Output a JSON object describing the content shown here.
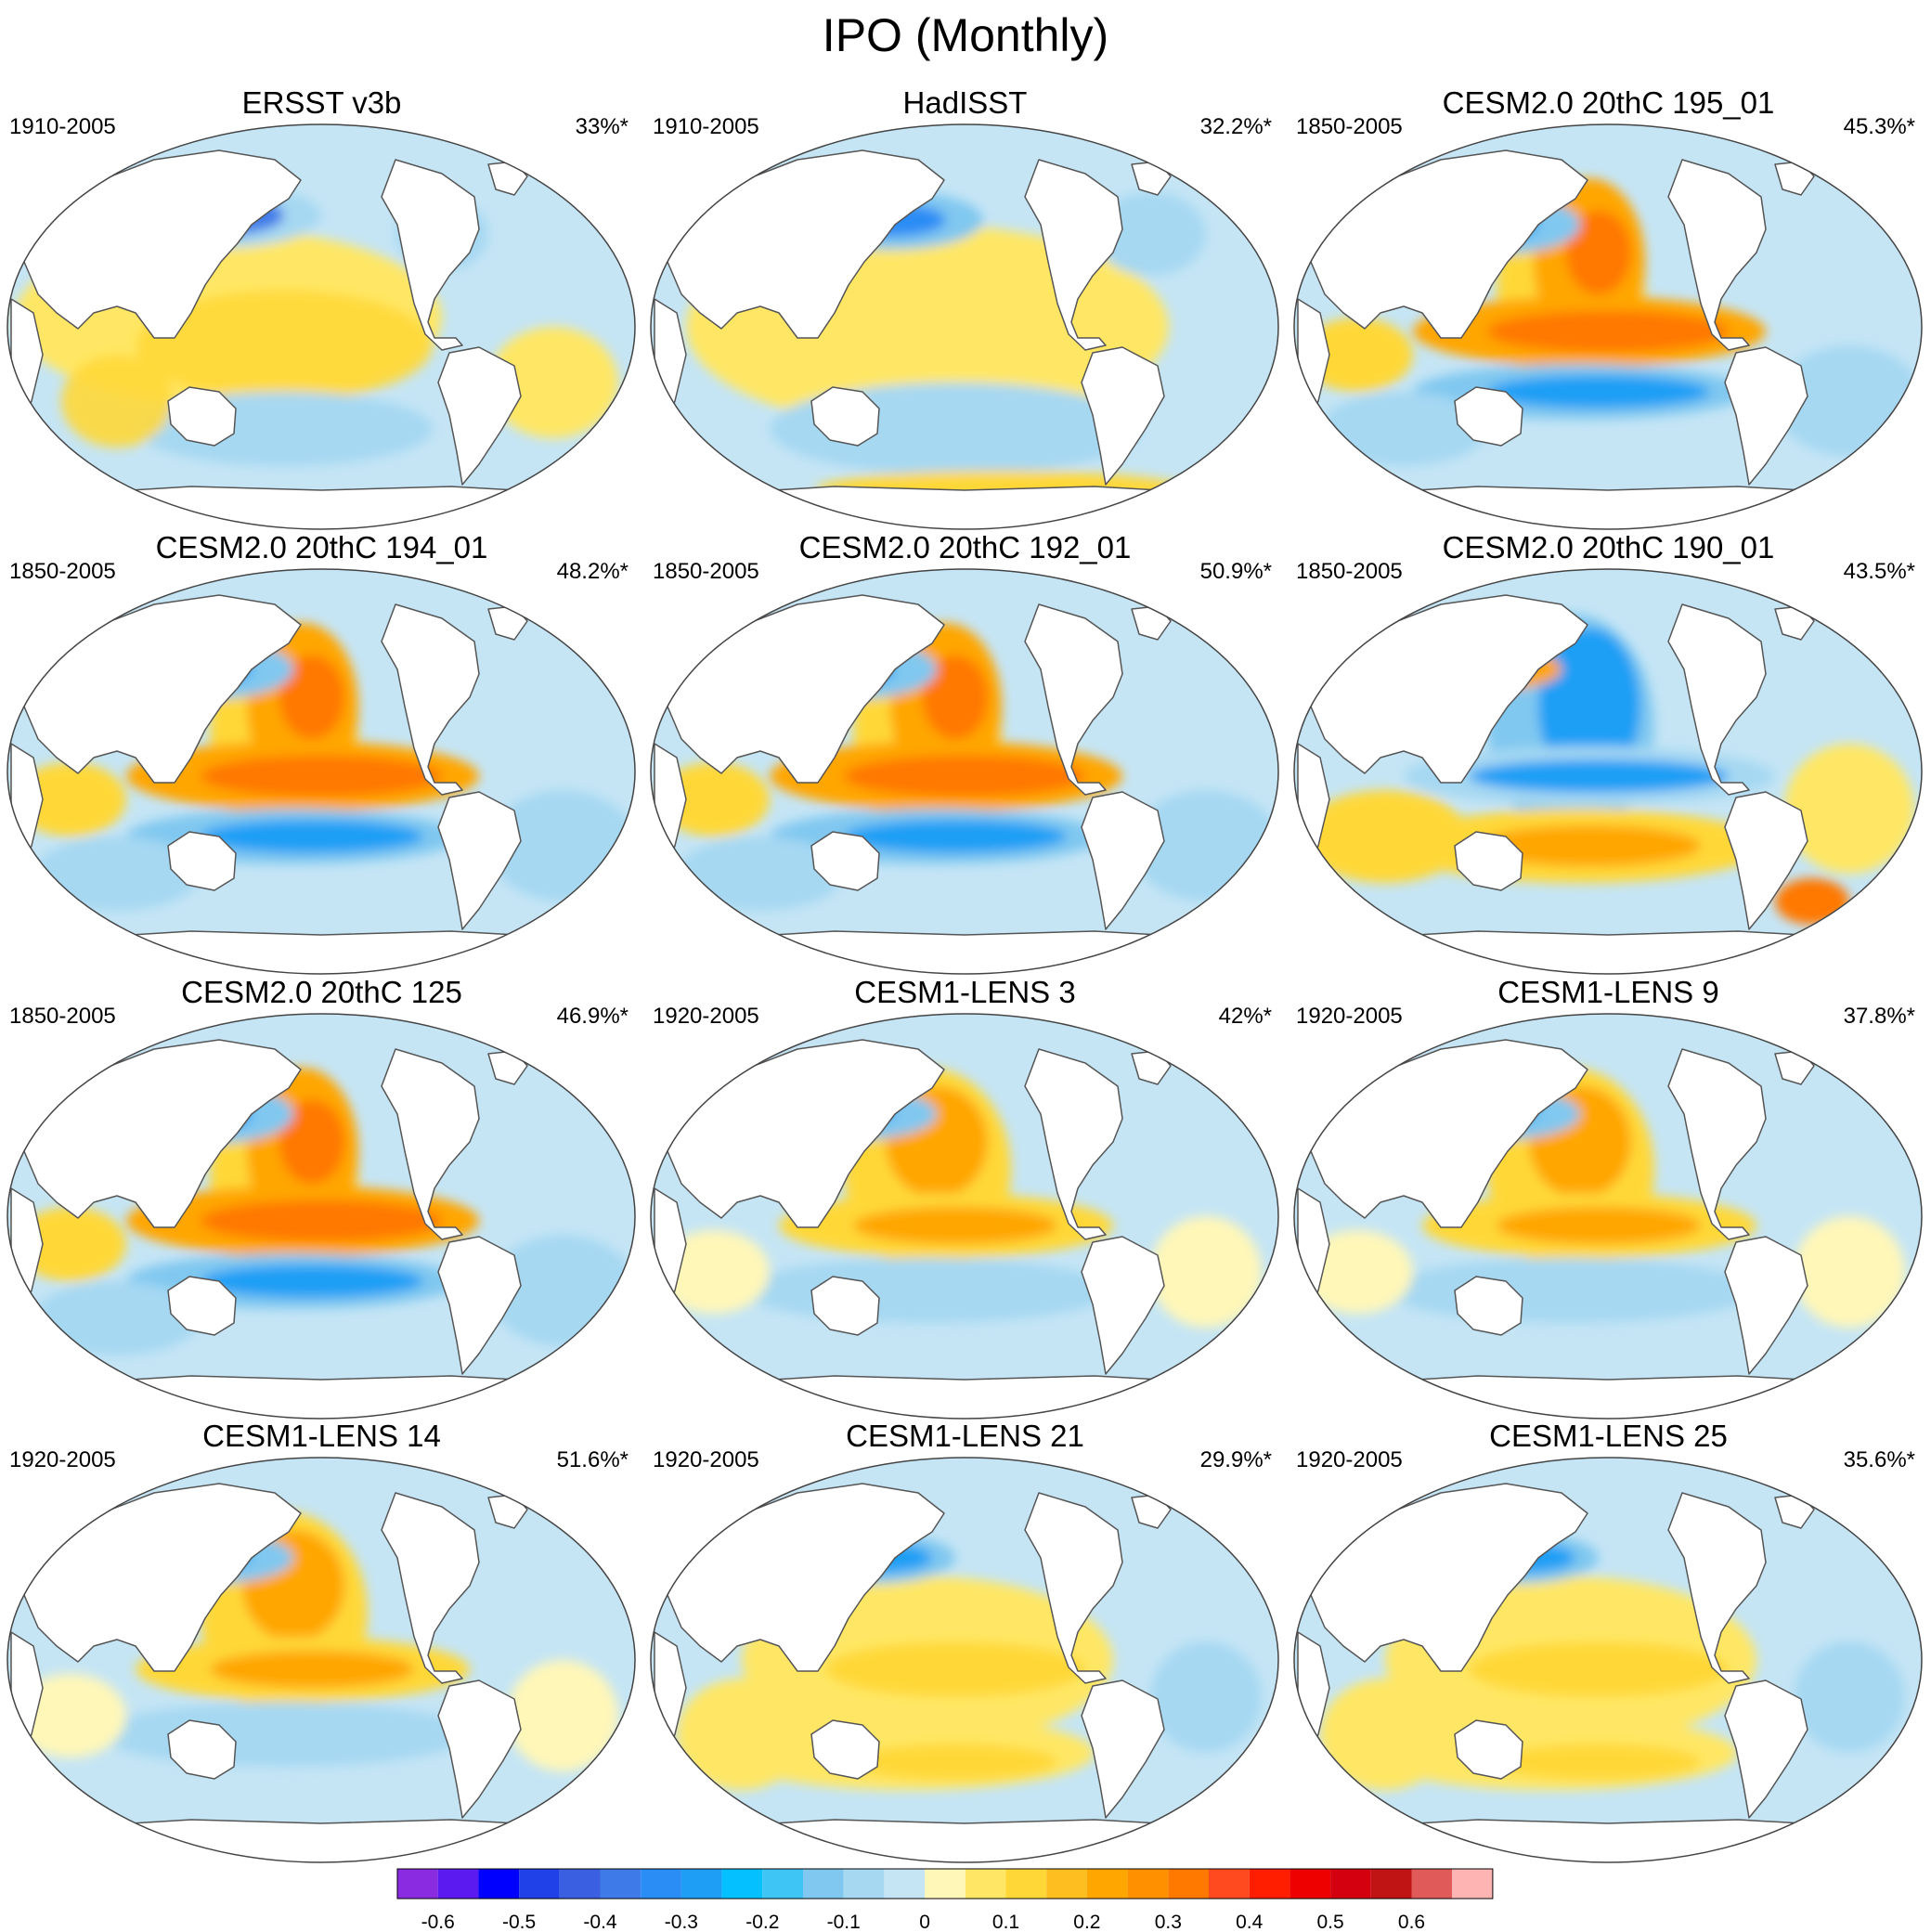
{
  "figure_title": "IPO (Monthly)",
  "panels": [
    {
      "title": "ERSST v3b",
      "period": "1910-2005",
      "variance": "33%*",
      "pattern": "obs1"
    },
    {
      "title": "HadISST",
      "period": "1910-2005",
      "variance": "32.2%*",
      "pattern": "obs2"
    },
    {
      "title": "CESM2.0 20thC 195_01",
      "period": "1850-2005",
      "variance": "45.3%*",
      "pattern": "strong"
    },
    {
      "title": "CESM2.0 20thC 194_01",
      "period": "1850-2005",
      "variance": "48.2%*",
      "pattern": "strong"
    },
    {
      "title": "CESM2.0 20thC 192_01",
      "period": "1850-2005",
      "variance": "50.9%*",
      "pattern": "strong"
    },
    {
      "title": "CESM2.0 20thC 190_01",
      "period": "1850-2005",
      "variance": "43.5%*",
      "pattern": "inverted"
    },
    {
      "title": "CESM2.0 20thC 125",
      "period": "1850-2005",
      "variance": "46.9%*",
      "pattern": "strong"
    },
    {
      "title": "CESM1-LENS 3",
      "period": "1920-2005",
      "variance": "42%*",
      "pattern": "medium"
    },
    {
      "title": "CESM1-LENS 9",
      "period": "1920-2005",
      "variance": "37.8%*",
      "pattern": "medium"
    },
    {
      "title": "CESM1-LENS 14",
      "period": "1920-2005",
      "variance": "51.6%*",
      "pattern": "medium"
    },
    {
      "title": "CESM1-LENS 21",
      "period": "1920-2005",
      "variance": "29.9%*",
      "pattern": "weak"
    },
    {
      "title": "CESM1-LENS 25",
      "period": "1920-2005",
      "variance": "35.6%*",
      "pattern": "weak"
    }
  ],
  "colorbar": {
    "colors": [
      "#8a2be2",
      "#5a1af0",
      "#0000ff",
      "#2040e8",
      "#3a5fe0",
      "#3f7be8",
      "#2a8cf5",
      "#1e9ff5",
      "#05c0ff",
      "#3fc5f5",
      "#80c8f0",
      "#a6d8f2",
      "#c5e5f5",
      "#fff7b8",
      "#ffe765",
      "#ffd838",
      "#ffbe20",
      "#ffa600",
      "#ff9000",
      "#ff7800",
      "#ff4a20",
      "#ff1e00",
      "#ee0000",
      "#d40010",
      "#c01414",
      "#e05a5a",
      "#ffb4b4"
    ],
    "tick_labels": [
      "-0.6",
      "-0.5",
      "-0.4",
      "-0.3",
      "-0.2",
      "-0.1",
      "0",
      "0.1",
      "0.2",
      "0.3",
      "0.4",
      "0.5",
      "0.6"
    ]
  },
  "colors": {
    "land": "#ffffff",
    "coast": "#555555",
    "neutral_blue": "#c5e5f5",
    "light_yellow": "#fff7b8",
    "warm": "#ff9000",
    "cool": "#1e9ff5"
  }
}
